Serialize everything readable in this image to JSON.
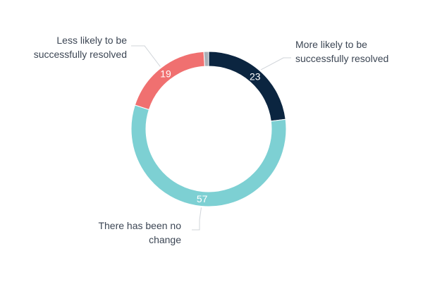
{
  "chart_data": {
    "type": "pie",
    "donut": true,
    "start_angle_deg": 0,
    "slices": [
      {
        "label_lines": [
          "More likely to be",
          "successfully resolved"
        ],
        "value": 23,
        "value_label": "23",
        "color": "#0b2540"
      },
      {
        "label_lines": [
          "There has been no",
          "change"
        ],
        "value": 57,
        "value_label": "57",
        "color": "#7dd0d3"
      },
      {
        "label_lines": [
          "Less likely to be",
          "successfully resolved"
        ],
        "value": 19,
        "value_label": "19",
        "color": "#f07070"
      },
      {
        "label_lines": [],
        "value": 1,
        "value_label": "",
        "color": "#a9b0b8"
      }
    ],
    "legend": "none"
  }
}
